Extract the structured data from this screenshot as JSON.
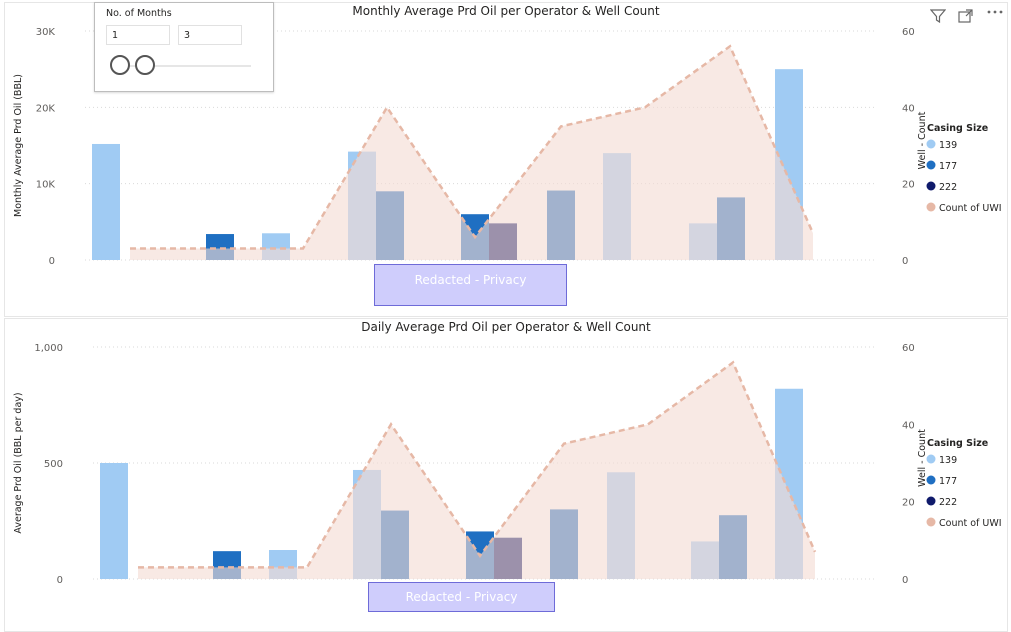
{
  "slicer": {
    "title": "No. of Months",
    "min_value": "1",
    "max_value": "3"
  },
  "redacted_label": "Redacted - Privacy",
  "icons": [
    "filter-icon",
    "focus-mode-icon",
    "more-options-icon"
  ],
  "colors": {
    "c139": "#a0cbf3",
    "c177": "#1f6fc2",
    "c222": "#0f1a6b",
    "area": "#f3dcd4",
    "line": "#e6b8a6"
  },
  "chart_data": [
    {
      "type": "bar",
      "title": "Monthly Average Prd Oil per Operator & Well Count",
      "ylabel": "Monthly Average Prd Oil (BBL)",
      "y2label": "Well - Count",
      "ylim": [
        0,
        30000
      ],
      "y2lim": [
        0,
        60
      ],
      "yticks": [
        "0",
        "10K",
        "20K",
        "30K"
      ],
      "y2ticks": [
        "0",
        "20",
        "40",
        "60"
      ],
      "legend": {
        "title": "Casing Size",
        "entries": [
          {
            "label": "139",
            "color": "#a0cbf3"
          },
          {
            "label": "177",
            "color": "#1f6fc2"
          },
          {
            "label": "222",
            "color": "#0f1a6b"
          },
          {
            "label": "Count of UWI",
            "color": "#e6b8a6"
          }
        ]
      },
      "groups": 9,
      "bars": [
        {
          "group": 0,
          "series": "139",
          "value": 15200
        },
        {
          "group": 1,
          "series": "177",
          "value": 3400
        },
        {
          "group": 2,
          "series": "139",
          "value": 3500
        },
        {
          "group": 3,
          "series": "139",
          "value": 14200
        },
        {
          "group": 3,
          "series": "177",
          "value": 9000
        },
        {
          "group": 4,
          "series": "177",
          "value": 6000
        },
        {
          "group": 4,
          "series": "222",
          "value": 4800
        },
        {
          "group": 5,
          "series": "177",
          "value": 9100
        },
        {
          "group": 6,
          "series": "139",
          "value": 14000
        },
        {
          "group": 7,
          "series": "139",
          "value": 4800
        },
        {
          "group": 7,
          "series": "177",
          "value": 8200
        },
        {
          "group": 8,
          "series": "139",
          "value": 25000
        }
      ],
      "count_of_uwi": [
        3,
        3,
        3,
        40,
        6,
        35,
        40,
        56,
        7
      ]
    },
    {
      "type": "bar",
      "title": "Daily Average Prd Oil per Operator & Well Count",
      "ylabel": "Average Prd Oil (BBL per day)",
      "y2label": "Well - Count",
      "ylim": [
        0,
        1000
      ],
      "y2lim": [
        0,
        60
      ],
      "yticks": [
        "0",
        "500",
        "1,000"
      ],
      "y2ticks": [
        "0",
        "20",
        "40",
        "60"
      ],
      "legend": {
        "title": "Casing Size",
        "entries": [
          {
            "label": "139",
            "color": "#a0cbf3"
          },
          {
            "label": "177",
            "color": "#1f6fc2"
          },
          {
            "label": "222",
            "color": "#0f1a6b"
          },
          {
            "label": "Count of UWI",
            "color": "#e6b8a6"
          }
        ]
      },
      "groups": 9,
      "bars": [
        {
          "group": 0,
          "series": "139",
          "value": 500
        },
        {
          "group": 1,
          "series": "177",
          "value": 120
        },
        {
          "group": 2,
          "series": "139",
          "value": 125
        },
        {
          "group": 3,
          "series": "139",
          "value": 470
        },
        {
          "group": 3,
          "series": "177",
          "value": 295
        },
        {
          "group": 4,
          "series": "177",
          "value": 205
        },
        {
          "group": 4,
          "series": "222",
          "value": 178
        },
        {
          "group": 5,
          "series": "177",
          "value": 300
        },
        {
          "group": 6,
          "series": "139",
          "value": 460
        },
        {
          "group": 7,
          "series": "139",
          "value": 162
        },
        {
          "group": 7,
          "series": "177",
          "value": 275
        },
        {
          "group": 8,
          "series": "139",
          "value": 820
        }
      ],
      "count_of_uwi": [
        3,
        3,
        3,
        40,
        6,
        35,
        40,
        56,
        7
      ]
    }
  ]
}
